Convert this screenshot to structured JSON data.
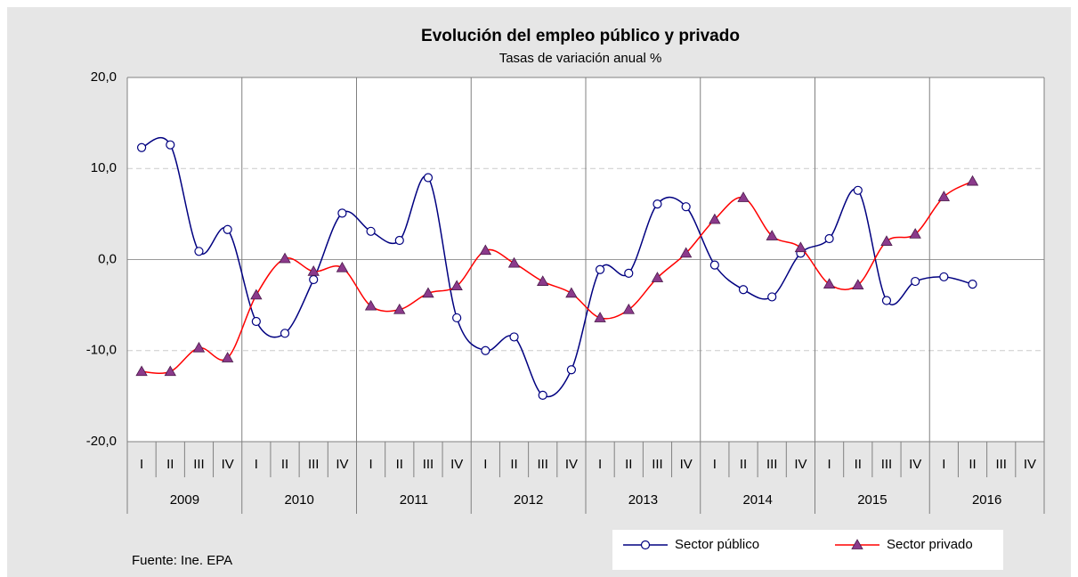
{
  "chart_data": {
    "type": "line",
    "title": "Evolución del empleo público y privado",
    "subtitle": "Tasas de variación anual  %",
    "categories": [
      "I",
      "II",
      "III",
      "IV",
      "I",
      "II",
      "III",
      "IV",
      "I",
      "II",
      "III",
      "IV",
      "I",
      "II",
      "III",
      "IV",
      "I",
      "II",
      "III",
      "IV",
      "I",
      "II",
      "III",
      "IV",
      "I",
      "II",
      "III",
      "IV",
      "I",
      "II",
      "III",
      "IV"
    ],
    "years": [
      "2009",
      "2010",
      "2011",
      "2012",
      "2013",
      "2014",
      "2015",
      "2016"
    ],
    "series": [
      {
        "name": "Sector público",
        "color": "#000080",
        "marker": "circle",
        "values": [
          12.3,
          12.6,
          0.9,
          3.3,
          -6.8,
          -8.1,
          -2.2,
          5.1,
          3.1,
          2.1,
          9.0,
          -6.4,
          -10.0,
          -8.5,
          -14.9,
          -12.1,
          -1.1,
          -1.5,
          6.1,
          5.8,
          -0.6,
          -3.3,
          -4.1,
          0.7,
          2.3,
          7.6,
          -4.5,
          -2.4,
          -1.9,
          -2.7,
          null,
          null
        ]
      },
      {
        "name": "Sector privado",
        "color": "#ff0000",
        "marker": "triangle",
        "marker_color": "#8b3a8b",
        "values": [
          -12.3,
          -12.3,
          -9.7,
          -10.8,
          -3.9,
          0.1,
          -1.3,
          -0.9,
          -5.1,
          -5.5,
          -3.7,
          -2.9,
          1.0,
          -0.4,
          -2.4,
          -3.7,
          -6.4,
          -5.5,
          -2.0,
          0.7,
          4.4,
          6.8,
          2.6,
          1.3,
          -2.7,
          -2.8,
          2.0,
          2.8,
          6.9,
          8.6,
          null,
          null
        ]
      }
    ],
    "ylim": [
      -20,
      20
    ],
    "yticks": [
      {
        "value": -20,
        "label": "-20,0"
      },
      {
        "value": -10,
        "label": "-10,0"
      },
      {
        "value": 0,
        "label": "0,0"
      },
      {
        "value": 10,
        "label": "10,0"
      },
      {
        "value": 20,
        "label": "20,0"
      }
    ],
    "grid": true,
    "source": "Fuente: Ine. EPA"
  }
}
